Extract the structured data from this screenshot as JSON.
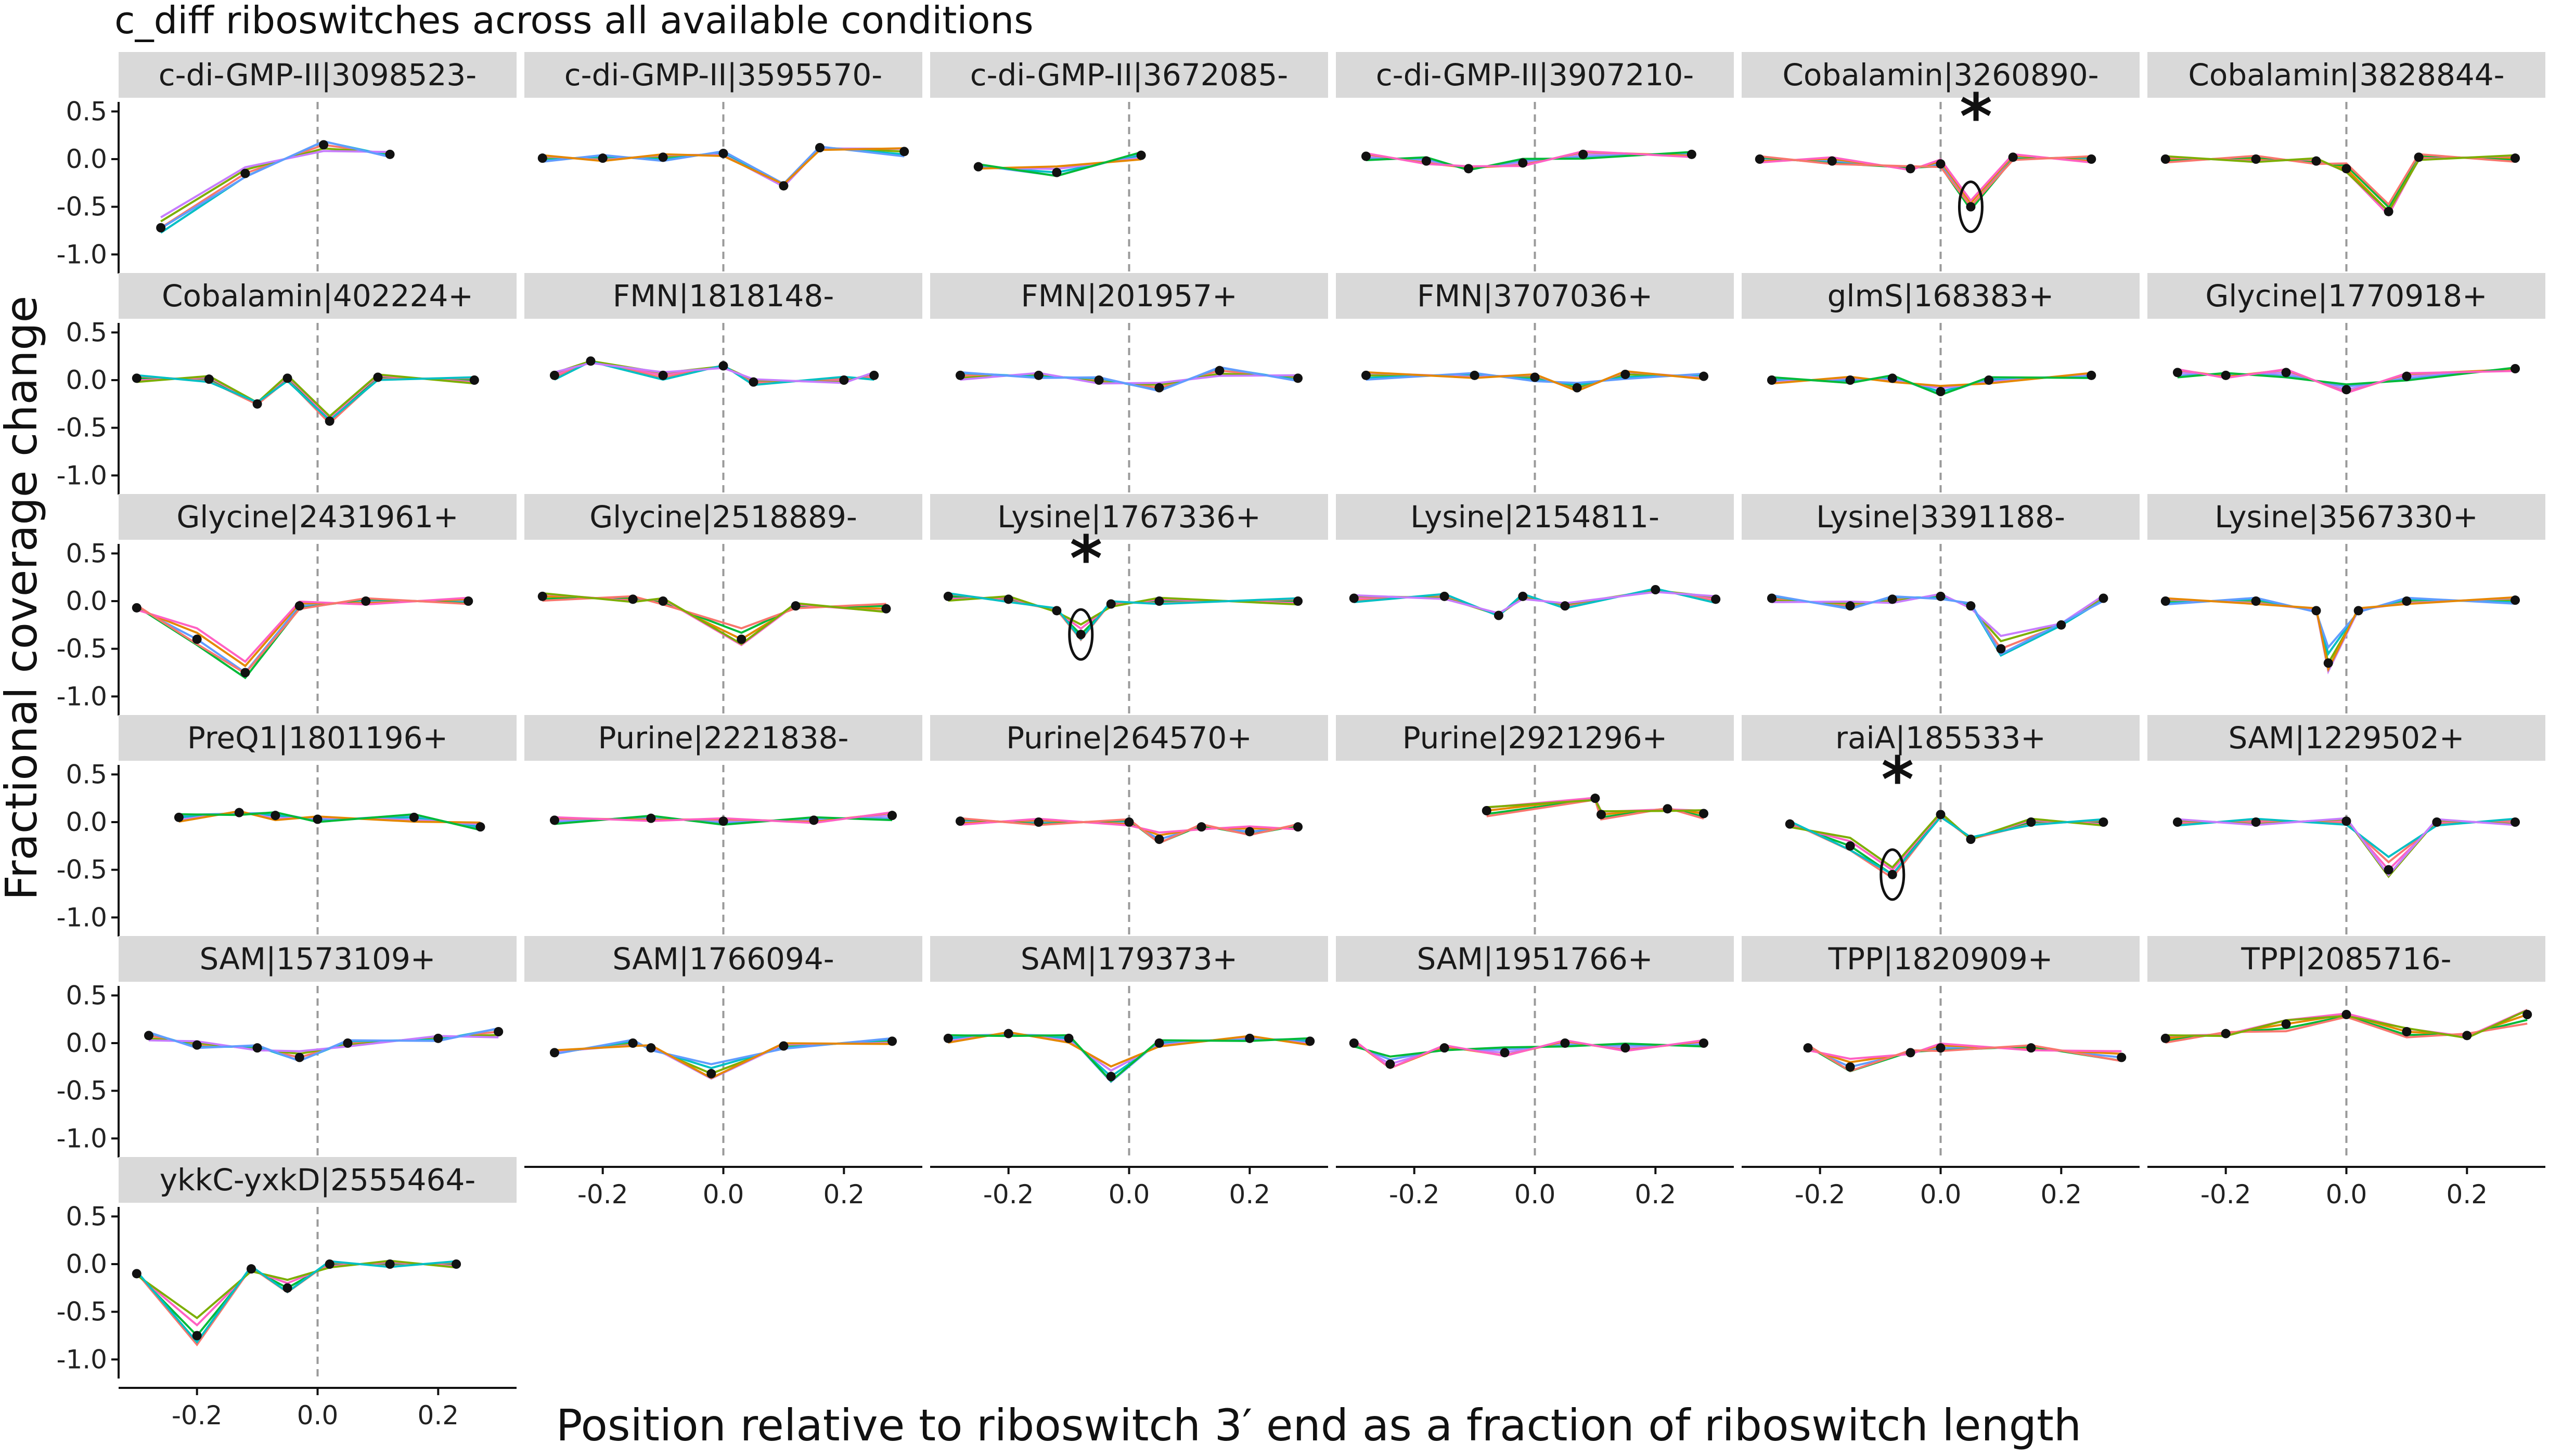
{
  "chart_data": {
    "type": "line",
    "title": "c_diff riboswitches across all available conditions",
    "xlabel": "Position relative to riboswitch 3′ end as a fraction of riboswitch length",
    "ylabel": "Fractional coverage change",
    "xlim": [
      -0.33,
      0.33
    ],
    "ylim": [
      -1.2,
      0.6
    ],
    "x_ticks": [
      -0.2,
      0.0,
      0.2
    ],
    "x_tick_labels": [
      "-0.2",
      "0.0",
      "0.2"
    ],
    "y_ticks": [
      0.5,
      0.0,
      -0.5,
      -1.0
    ],
    "y_tick_labels": [
      "0.5",
      "0.0",
      "-0.5",
      "-1.0"
    ],
    "reference_line_x": 0.0,
    "grid": false,
    "series_colors": [
      "#f8766d",
      "#7cae00",
      "#00bfc4",
      "#c77cff",
      "#619cff",
      "#e58700",
      "#00ba38",
      "#ff61c3"
    ],
    "panels": [
      {
        "label": "c-di-GMP-II|3098523-",
        "star": false,
        "points": [
          [
            -0.26,
            -0.72
          ],
          [
            -0.12,
            -0.15
          ],
          [
            0.01,
            0.15
          ],
          [
            0.12,
            0.05
          ]
        ]
      },
      {
        "label": "c-di-GMP-II|3595570-",
        "star": false,
        "points": [
          [
            -0.3,
            0.01
          ],
          [
            -0.2,
            0.01
          ],
          [
            -0.1,
            0.02
          ],
          [
            0.0,
            0.06
          ],
          [
            0.1,
            -0.28
          ],
          [
            0.16,
            0.12
          ],
          [
            0.3,
            0.08
          ]
        ]
      },
      {
        "label": "c-di-GMP-II|3672085-",
        "star": false,
        "points": [
          [
            -0.25,
            -0.08
          ],
          [
            -0.12,
            -0.14
          ],
          [
            0.02,
            0.04
          ]
        ]
      },
      {
        "label": "c-di-GMP-II|3907210-",
        "star": false,
        "points": [
          [
            -0.28,
            0.03
          ],
          [
            -0.18,
            -0.02
          ],
          [
            -0.11,
            -0.1
          ],
          [
            -0.02,
            -0.04
          ],
          [
            0.08,
            0.05
          ],
          [
            0.26,
            0.05
          ]
        ]
      },
      {
        "label": "Cobalamin|3260890-",
        "star": true,
        "points": [
          [
            -0.3,
            0.0
          ],
          [
            -0.18,
            -0.02
          ],
          [
            -0.05,
            -0.1
          ],
          [
            0.0,
            -0.05
          ],
          [
            0.05,
            -0.5
          ],
          [
            0.12,
            0.02
          ],
          [
            0.25,
            0.0
          ]
        ]
      },
      {
        "label": "Cobalamin|3828844-",
        "star": false,
        "points": [
          [
            -0.3,
            0.0
          ],
          [
            -0.15,
            0.0
          ],
          [
            -0.05,
            -0.02
          ],
          [
            0.0,
            -0.1
          ],
          [
            0.07,
            -0.55
          ],
          [
            0.12,
            0.02
          ],
          [
            0.28,
            0.01
          ]
        ]
      },
      {
        "label": "Cobalamin|402224+",
        "star": false,
        "points": [
          [
            -0.3,
            0.02
          ],
          [
            -0.18,
            0.01
          ],
          [
            -0.1,
            -0.25
          ],
          [
            -0.05,
            0.02
          ],
          [
            0.02,
            -0.43
          ],
          [
            0.1,
            0.03
          ],
          [
            0.26,
            0.0
          ]
        ]
      },
      {
        "label": "FMN|1818148-",
        "star": false,
        "points": [
          [
            -0.28,
            0.05
          ],
          [
            -0.22,
            0.2
          ],
          [
            -0.1,
            0.05
          ],
          [
            0.0,
            0.15
          ],
          [
            0.05,
            -0.02
          ],
          [
            0.2,
            0.0
          ],
          [
            0.25,
            0.05
          ]
        ]
      },
      {
        "label": "FMN|201957+",
        "star": false,
        "points": [
          [
            -0.28,
            0.05
          ],
          [
            -0.15,
            0.05
          ],
          [
            -0.05,
            0.0
          ],
          [
            0.05,
            -0.08
          ],
          [
            0.15,
            0.1
          ],
          [
            0.28,
            0.02
          ]
        ]
      },
      {
        "label": "FMN|3707036+",
        "star": false,
        "points": [
          [
            -0.28,
            0.05
          ],
          [
            -0.1,
            0.05
          ],
          [
            0.0,
            0.03
          ],
          [
            0.07,
            -0.08
          ],
          [
            0.15,
            0.06
          ],
          [
            0.28,
            0.04
          ]
        ]
      },
      {
        "label": "glmS|168383+",
        "star": false,
        "points": [
          [
            -0.28,
            0.0
          ],
          [
            -0.15,
            0.0
          ],
          [
            -0.08,
            0.02
          ],
          [
            0.0,
            -0.12
          ],
          [
            0.08,
            0.0
          ],
          [
            0.25,
            0.05
          ]
        ]
      },
      {
        "label": "Glycine|1770918+",
        "star": false,
        "points": [
          [
            -0.28,
            0.08
          ],
          [
            -0.2,
            0.05
          ],
          [
            -0.1,
            0.08
          ],
          [
            0.0,
            -0.1
          ],
          [
            0.1,
            0.04
          ],
          [
            0.28,
            0.12
          ]
        ]
      },
      {
        "label": "Glycine|2431961+",
        "star": false,
        "points": [
          [
            -0.3,
            -0.07
          ],
          [
            -0.2,
            -0.4
          ],
          [
            -0.12,
            -0.75
          ],
          [
            -0.03,
            -0.05
          ],
          [
            0.08,
            0.0
          ],
          [
            0.25,
            0.0
          ]
        ]
      },
      {
        "label": "Glycine|2518889-",
        "star": false,
        "points": [
          [
            -0.3,
            0.05
          ],
          [
            -0.15,
            0.02
          ],
          [
            -0.1,
            0.0
          ],
          [
            0.03,
            -0.4
          ],
          [
            0.12,
            -0.05
          ],
          [
            0.27,
            -0.08
          ]
        ]
      },
      {
        "label": "Lysine|1767336+",
        "star": true,
        "points": [
          [
            -0.3,
            0.05
          ],
          [
            -0.2,
            0.02
          ],
          [
            -0.12,
            -0.1
          ],
          [
            -0.08,
            -0.35
          ],
          [
            -0.03,
            -0.03
          ],
          [
            0.05,
            0.0
          ],
          [
            0.28,
            0.0
          ]
        ]
      },
      {
        "label": "Lysine|2154811-",
        "star": false,
        "points": [
          [
            -0.3,
            0.03
          ],
          [
            -0.15,
            0.05
          ],
          [
            -0.06,
            -0.15
          ],
          [
            -0.02,
            0.05
          ],
          [
            0.05,
            -0.05
          ],
          [
            0.2,
            0.12
          ],
          [
            0.3,
            0.02
          ]
        ]
      },
      {
        "label": "Lysine|3391188-",
        "star": false,
        "points": [
          [
            -0.28,
            0.03
          ],
          [
            -0.15,
            -0.05
          ],
          [
            -0.08,
            0.02
          ],
          [
            0.0,
            0.05
          ],
          [
            0.05,
            -0.05
          ],
          [
            0.1,
            -0.5
          ],
          [
            0.2,
            -0.25
          ],
          [
            0.27,
            0.03
          ]
        ]
      },
      {
        "label": "Lysine|3567330+",
        "star": false,
        "points": [
          [
            -0.3,
            0.0
          ],
          [
            -0.15,
            0.0
          ],
          [
            -0.05,
            -0.1
          ],
          [
            -0.03,
            -0.65
          ],
          [
            0.02,
            -0.1
          ],
          [
            0.1,
            0.0
          ],
          [
            0.28,
            0.01
          ]
        ]
      },
      {
        "label": "PreQ1|1801196+",
        "star": false,
        "points": [
          [
            -0.23,
            0.05
          ],
          [
            -0.13,
            0.1
          ],
          [
            -0.07,
            0.07
          ],
          [
            0.0,
            0.03
          ],
          [
            0.16,
            0.05
          ],
          [
            0.27,
            -0.05
          ]
        ]
      },
      {
        "label": "Purine|2221838-",
        "star": false,
        "points": [
          [
            -0.28,
            0.02
          ],
          [
            -0.12,
            0.04
          ],
          [
            0.0,
            0.01
          ],
          [
            0.15,
            0.02
          ],
          [
            0.28,
            0.07
          ]
        ]
      },
      {
        "label": "Purine|264570+",
        "star": false,
        "points": [
          [
            -0.28,
            0.01
          ],
          [
            -0.15,
            0.0
          ],
          [
            0.0,
            0.0
          ],
          [
            0.05,
            -0.18
          ],
          [
            0.12,
            -0.05
          ],
          [
            0.2,
            -0.1
          ],
          [
            0.28,
            -0.05
          ]
        ]
      },
      {
        "label": "Purine|2921296+",
        "star": false,
        "points": [
          [
            -0.08,
            0.12
          ],
          [
            0.1,
            0.25
          ],
          [
            0.11,
            0.08
          ],
          [
            0.22,
            0.14
          ],
          [
            0.28,
            0.09
          ]
        ]
      },
      {
        "label": "raiA|185533+",
        "star": true,
        "points": [
          [
            -0.25,
            -0.02
          ],
          [
            -0.15,
            -0.25
          ],
          [
            -0.08,
            -0.55
          ],
          [
            0.0,
            0.08
          ],
          [
            0.05,
            -0.18
          ],
          [
            0.15,
            0.0
          ],
          [
            0.27,
            0.0
          ]
        ]
      },
      {
        "label": "SAM|1229502+",
        "star": false,
        "points": [
          [
            -0.28,
            0.0
          ],
          [
            -0.15,
            0.0
          ],
          [
            0.0,
            0.01
          ],
          [
            0.07,
            -0.5
          ],
          [
            0.15,
            0.0
          ],
          [
            0.28,
            0.0
          ]
        ]
      },
      {
        "label": "SAM|1573109+",
        "star": false,
        "points": [
          [
            -0.28,
            0.08
          ],
          [
            -0.2,
            -0.02
          ],
          [
            -0.1,
            -0.05
          ],
          [
            -0.03,
            -0.15
          ],
          [
            0.05,
            0.0
          ],
          [
            0.2,
            0.05
          ],
          [
            0.3,
            0.12
          ]
        ]
      },
      {
        "label": "SAM|1766094-",
        "star": false,
        "points": [
          [
            -0.28,
            -0.1
          ],
          [
            -0.15,
            0.0
          ],
          [
            -0.12,
            -0.05
          ],
          [
            -0.02,
            -0.32
          ],
          [
            0.1,
            -0.03
          ],
          [
            0.28,
            0.02
          ]
        ]
      },
      {
        "label": "SAM|179373+",
        "star": false,
        "points": [
          [
            -0.3,
            0.05
          ],
          [
            -0.2,
            0.1
          ],
          [
            -0.1,
            0.05
          ],
          [
            -0.03,
            -0.35
          ],
          [
            0.05,
            0.0
          ],
          [
            0.2,
            0.05
          ],
          [
            0.3,
            0.02
          ]
        ]
      },
      {
        "label": "SAM|1951766+",
        "star": false,
        "points": [
          [
            -0.3,
            0.0
          ],
          [
            -0.24,
            -0.22
          ],
          [
            -0.15,
            -0.05
          ],
          [
            -0.05,
            -0.1
          ],
          [
            0.05,
            0.0
          ],
          [
            0.15,
            -0.05
          ],
          [
            0.28,
            0.0
          ]
        ]
      },
      {
        "label": "TPP|1820909+",
        "star": false,
        "points": [
          [
            -0.22,
            -0.05
          ],
          [
            -0.15,
            -0.25
          ],
          [
            -0.05,
            -0.1
          ],
          [
            0.0,
            -0.05
          ],
          [
            0.15,
            -0.05
          ],
          [
            0.3,
            -0.15
          ]
        ]
      },
      {
        "label": "TPP|2085716-",
        "star": false,
        "points": [
          [
            -0.3,
            0.05
          ],
          [
            -0.2,
            0.1
          ],
          [
            -0.1,
            0.2
          ],
          [
            0.0,
            0.3
          ],
          [
            0.1,
            0.12
          ],
          [
            0.2,
            0.08
          ],
          [
            0.3,
            0.3
          ]
        ]
      },
      {
        "label": "ykkC-yxkD|2555464-",
        "star": false,
        "points": [
          [
            -0.3,
            -0.1
          ],
          [
            -0.2,
            -0.75
          ],
          [
            -0.11,
            -0.05
          ],
          [
            -0.05,
            -0.25
          ],
          [
            0.02,
            0.0
          ],
          [
            0.12,
            0.0
          ],
          [
            0.23,
            0.0
          ]
        ]
      }
    ]
  }
}
